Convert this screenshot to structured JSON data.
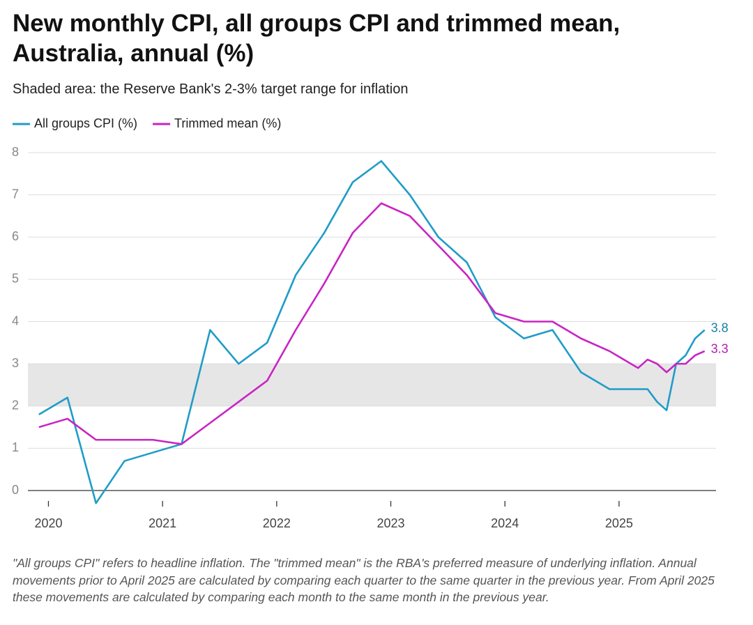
{
  "chart_data": {
    "type": "line",
    "title": "New monthly CPI, all groups CPI and trimmed mean, Australia, annual (%)",
    "subtitle": "Shaded area: the Reserve Bank's 2-3% target range for inflation",
    "footnote": "\"All groups CPI\" refers to headline inflation. The \"trimmed mean\" is the RBA's preferred measure of underlying inflation. Annual movements prior to April 2025 are calculated by comparing each quarter to the same quarter in the previous year. From April 2025 these movements are calculated by comparing each month to the same month in the previous year.",
    "x": [
      2019.9167,
      2020.1667,
      2020.4167,
      2020.6667,
      2020.9167,
      2021.1667,
      2021.4167,
      2021.6667,
      2021.9167,
      2022.1667,
      2022.4167,
      2022.6667,
      2022.9167,
      2023.1667,
      2023.4167,
      2023.6667,
      2023.9167,
      2024.1667,
      2024.4167,
      2024.6667,
      2024.9167,
      2025.1667,
      2025.25,
      2025.3333,
      2025.4167,
      2025.5,
      2025.5833,
      2025.6667,
      2025.75
    ],
    "series": [
      {
        "name": "All groups CPI (%)",
        "color": "#1f9cc8",
        "label_color": "#157fa6",
        "values": [
          1.8,
          2.2,
          -0.3,
          0.7,
          0.9,
          1.1,
          3.8,
          3.0,
          3.5,
          5.1,
          6.1,
          7.3,
          7.8,
          7.0,
          6.0,
          5.4,
          4.1,
          3.6,
          3.8,
          2.8,
          2.4,
          2.4,
          2.4,
          2.1,
          1.9,
          3.0,
          3.2,
          3.6,
          3.8
        ]
      },
      {
        "name": "Trimmed mean (%)",
        "color": "#c924c4",
        "label_color": "#b81ab3",
        "values": [
          1.5,
          1.7,
          1.2,
          1.2,
          1.2,
          1.1,
          1.6,
          2.1,
          2.6,
          3.8,
          4.9,
          6.1,
          6.8,
          6.5,
          5.8,
          5.1,
          4.2,
          4.0,
          4.0,
          3.6,
          3.3,
          2.9,
          3.1,
          3.0,
          2.8,
          3.0,
          3.0,
          3.2,
          3.3
        ]
      }
    ],
    "xlim": [
      2019.82,
      2025.85
    ],
    "xticks": [
      2020,
      2021,
      2022,
      2023,
      2024,
      2025
    ],
    "ylim": [
      0,
      8
    ],
    "yticks": [
      0,
      1,
      2,
      3,
      4,
      5,
      6,
      7,
      8
    ],
    "shaded_range": [
      2,
      3
    ],
    "grid": true,
    "legend": "top-left"
  }
}
